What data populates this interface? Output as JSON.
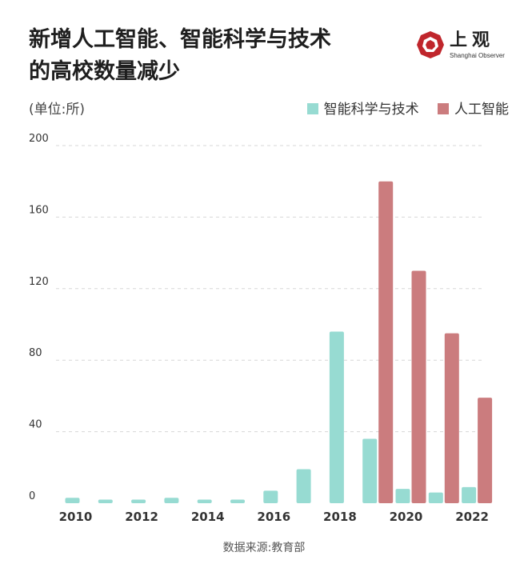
{
  "header": {
    "title_line1": "新增人工智能、智能科学与技术",
    "title_line2": "的高校数量减少",
    "unit": "(单位:所)"
  },
  "logo": {
    "name_cn": "上观",
    "name_en": "Shanghai Observer"
  },
  "legend": {
    "series1": "智能科学与技术",
    "series2": "人工智能"
  },
  "footer": {
    "source": "数据来源:教育部"
  },
  "colors": {
    "series1": "#97dbd2",
    "series2": "#cb7c7e",
    "grid": "#d7d7d7",
    "logo": "#c0262c"
  },
  "chart_data": {
    "type": "bar",
    "title": "新增人工智能、智能科学与技术的高校数量减少",
    "ylabel": "(单位:所)",
    "xlabel": "",
    "categories": [
      "2010",
      "2011",
      "2012",
      "2013",
      "2014",
      "2015",
      "2016",
      "2017",
      "2018",
      "2019",
      "2020",
      "2021",
      "2022"
    ],
    "x_tick_labels": [
      "2010",
      "2012",
      "2014",
      "2016",
      "2018",
      "2020",
      "2022"
    ],
    "y_ticks": [
      0,
      40,
      80,
      120,
      160,
      200
    ],
    "ylim": [
      0,
      200
    ],
    "grid": true,
    "legend_position": "top-right",
    "series": [
      {
        "name": "智能科学与技术",
        "values": [
          3,
          2,
          2,
          3,
          2,
          2,
          7,
          19,
          96,
          36,
          8,
          6,
          9
        ]
      },
      {
        "name": "人工智能",
        "values": [
          null,
          null,
          null,
          null,
          null,
          null,
          null,
          null,
          null,
          180,
          130,
          95,
          59
        ]
      }
    ]
  }
}
